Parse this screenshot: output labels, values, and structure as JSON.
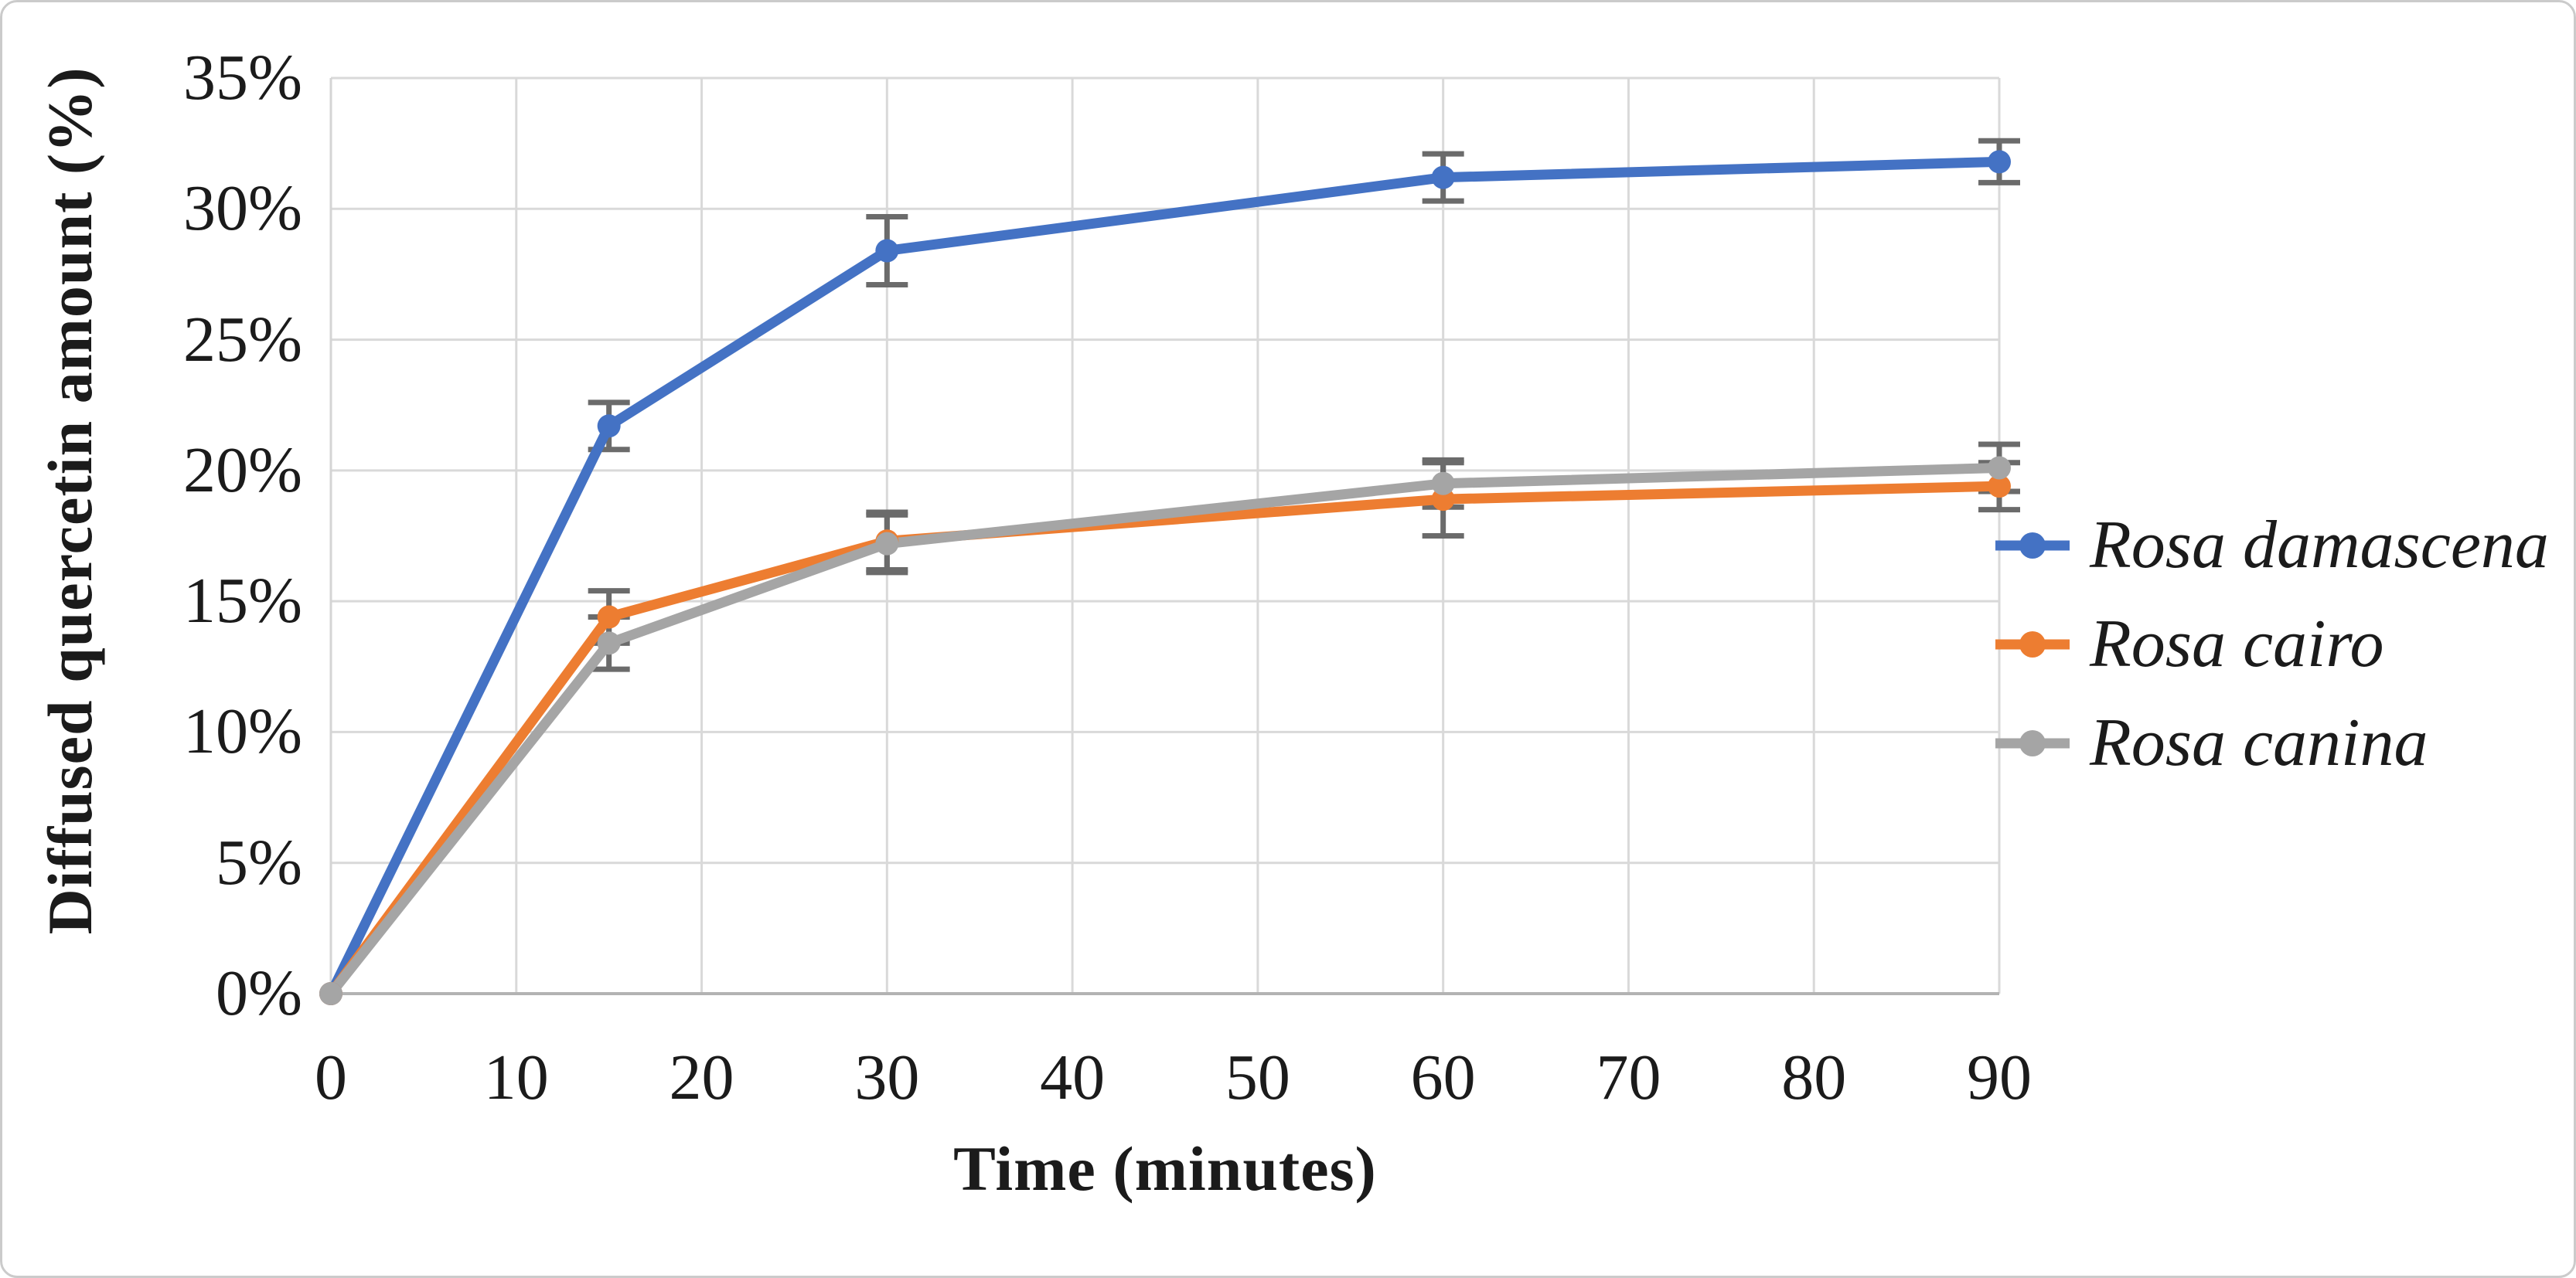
{
  "chart_data": {
    "type": "line",
    "title": "",
    "xlabel": "Time (minutes)",
    "ylabel": "Diffused quercetin amount (%)",
    "x": [
      0,
      15,
      30,
      60,
      90
    ],
    "series": [
      {
        "name": "Rosa damascena",
        "color": "#4472C4",
        "values": [
          0,
          21.7,
          28.4,
          31.2,
          31.8
        ],
        "errors": [
          0,
          0.9,
          1.3,
          0.9,
          0.8
        ]
      },
      {
        "name": "Rosa cairo",
        "color": "#ED7D31",
        "values": [
          0,
          14.4,
          17.3,
          18.9,
          19.4
        ],
        "errors": [
          0,
          1.0,
          1.1,
          1.4,
          0.9
        ]
      },
      {
        "name": "Rosa canina",
        "color": "#A5A5A5",
        "values": [
          0,
          13.4,
          17.2,
          19.5,
          20.1
        ],
        "errors": [
          0,
          1.0,
          1.1,
          0.9,
          0.9
        ]
      }
    ],
    "xlim": [
      0,
      90
    ],
    "ylim": [
      0,
      35
    ],
    "xticks": [
      0,
      10,
      20,
      30,
      40,
      50,
      60,
      70,
      80,
      90
    ],
    "xtick_labels": [
      "0",
      "10",
      "20",
      "30",
      "40",
      "50",
      "60",
      "70",
      "80",
      "90"
    ],
    "ytick_values": [
      0,
      5,
      10,
      15,
      20,
      25,
      30,
      35
    ],
    "ytick_labels": [
      "0%",
      "5%",
      "10%",
      "15%",
      "20%",
      "25%",
      "30%",
      "35%"
    ],
    "grid": true,
    "legend_position": "right",
    "marker": "circle",
    "colors": {
      "grid": "#D9D9D9",
      "x_axis_line": "#B3B3B3",
      "y_axis_line": "#D4D4D4",
      "error_bar": "#6B6B6B",
      "text": "#1B1B1B",
      "background": "#FFFFFF",
      "border": "#CBCBCB"
    }
  }
}
